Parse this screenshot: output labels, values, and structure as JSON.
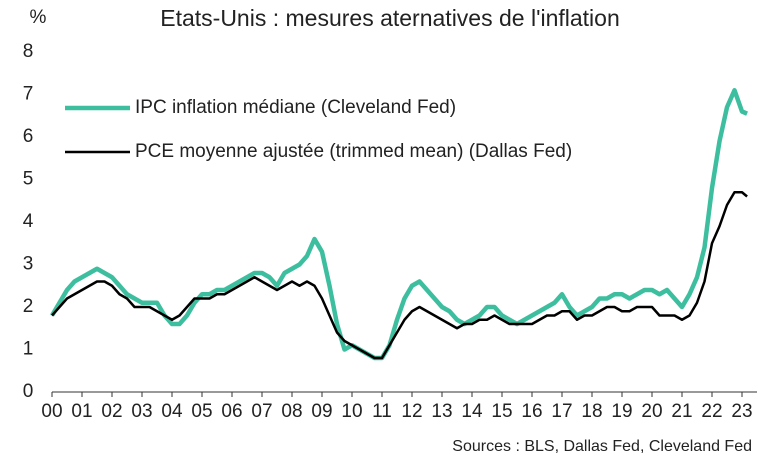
{
  "chart_data": {
    "type": "line",
    "title": "Etats-Unis : mesures aternatives de l'inflation",
    "ylabel": "%",
    "source": "Sources : BLS, Dallas Fed, Cleveland Fed",
    "legend": "top-left",
    "xlim": [
      0,
      23.5
    ],
    "ylim": [
      0,
      8
    ],
    "yticks": [
      0,
      1,
      2,
      3,
      4,
      5,
      6,
      7,
      8
    ],
    "xticks": [
      {
        "value": 0,
        "label": "00"
      },
      {
        "value": 1,
        "label": "01"
      },
      {
        "value": 2,
        "label": "02"
      },
      {
        "value": 3,
        "label": "03"
      },
      {
        "value": 4,
        "label": "04"
      },
      {
        "value": 5,
        "label": "05"
      },
      {
        "value": 6,
        "label": "06"
      },
      {
        "value": 7,
        "label": "07"
      },
      {
        "value": 8,
        "label": "08"
      },
      {
        "value": 9,
        "label": "09"
      },
      {
        "value": 10,
        "label": "10"
      },
      {
        "value": 11,
        "label": "11"
      },
      {
        "value": 12,
        "label": "12"
      },
      {
        "value": 13,
        "label": "13"
      },
      {
        "value": 14,
        "label": "14"
      },
      {
        "value": 15,
        "label": "15"
      },
      {
        "value": 16,
        "label": "16"
      },
      {
        "value": 17,
        "label": "17"
      },
      {
        "value": 18,
        "label": "18"
      },
      {
        "value": 19,
        "label": "19"
      },
      {
        "value": 20,
        "label": "20"
      },
      {
        "value": 21,
        "label": "21"
      },
      {
        "value": 22,
        "label": "22"
      },
      {
        "value": 23,
        "label": "23"
      }
    ],
    "x": [
      0,
      0.25,
      0.5,
      0.75,
      1,
      1.25,
      1.5,
      1.75,
      2,
      2.25,
      2.5,
      2.75,
      3,
      3.25,
      3.5,
      3.75,
      4,
      4.25,
      4.5,
      4.75,
      5,
      5.25,
      5.5,
      5.75,
      6,
      6.25,
      6.5,
      6.75,
      7,
      7.25,
      7.5,
      7.75,
      8,
      8.25,
      8.5,
      8.75,
      9,
      9.25,
      9.5,
      9.75,
      10,
      10.25,
      10.5,
      10.75,
      11,
      11.25,
      11.5,
      11.75,
      12,
      12.25,
      12.5,
      12.75,
      13,
      13.25,
      13.5,
      13.75,
      14,
      14.25,
      14.5,
      14.75,
      15,
      15.25,
      15.5,
      15.75,
      16,
      16.25,
      16.5,
      16.75,
      17,
      17.25,
      17.5,
      17.75,
      18,
      18.25,
      18.5,
      18.75,
      19,
      19.25,
      19.5,
      19.75,
      20,
      20.25,
      20.5,
      20.75,
      21,
      21.25,
      21.5,
      21.75,
      22,
      22.25,
      22.5,
      22.75,
      23,
      23.17
    ],
    "series": [
      {
        "name": "IPC inflation médiane (Cleveland Fed)",
        "color": "#3dbf9f",
        "width": 4.5,
        "values": [
          1.8,
          2.1,
          2.4,
          2.6,
          2.7,
          2.8,
          2.9,
          2.8,
          2.7,
          2.5,
          2.3,
          2.2,
          2.1,
          2.1,
          2.1,
          1.8,
          1.6,
          1.6,
          1.8,
          2.1,
          2.3,
          2.3,
          2.4,
          2.4,
          2.5,
          2.6,
          2.7,
          2.8,
          2.8,
          2.7,
          2.5,
          2.8,
          2.9,
          3.0,
          3.2,
          3.6,
          3.3,
          2.5,
          1.6,
          1.0,
          1.1,
          1.0,
          0.9,
          0.8,
          0.8,
          1.1,
          1.7,
          2.2,
          2.5,
          2.6,
          2.4,
          2.2,
          2.0,
          1.9,
          1.7,
          1.6,
          1.7,
          1.8,
          2.0,
          2.0,
          1.8,
          1.7,
          1.6,
          1.7,
          1.8,
          1.9,
          2.0,
          2.1,
          2.3,
          2.0,
          1.8,
          1.9,
          2.0,
          2.2,
          2.2,
          2.3,
          2.3,
          2.2,
          2.3,
          2.4,
          2.4,
          2.3,
          2.4,
          2.2,
          2.0,
          2.3,
          2.7,
          3.4,
          4.8,
          5.9,
          6.7,
          7.1,
          6.6,
          6.55
        ]
      },
      {
        "name": "PCE moyenne ajustée (trimmed mean) (Dallas Fed)",
        "color": "#000000",
        "width": 2.5,
        "values": [
          1.8,
          2.0,
          2.2,
          2.3,
          2.4,
          2.5,
          2.6,
          2.6,
          2.5,
          2.3,
          2.2,
          2.0,
          2.0,
          2.0,
          1.9,
          1.8,
          1.7,
          1.8,
          2.0,
          2.2,
          2.2,
          2.2,
          2.3,
          2.3,
          2.4,
          2.5,
          2.6,
          2.7,
          2.6,
          2.5,
          2.4,
          2.5,
          2.6,
          2.5,
          2.6,
          2.5,
          2.2,
          1.8,
          1.4,
          1.2,
          1.1,
          1.0,
          0.9,
          0.8,
          0.8,
          1.1,
          1.4,
          1.7,
          1.9,
          2.0,
          1.9,
          1.8,
          1.7,
          1.6,
          1.5,
          1.6,
          1.6,
          1.7,
          1.7,
          1.8,
          1.7,
          1.6,
          1.6,
          1.6,
          1.6,
          1.7,
          1.8,
          1.8,
          1.9,
          1.9,
          1.7,
          1.8,
          1.8,
          1.9,
          2.0,
          2.0,
          1.9,
          1.9,
          2.0,
          2.0,
          2.0,
          1.8,
          1.8,
          1.8,
          1.7,
          1.8,
          2.1,
          2.6,
          3.5,
          3.9,
          4.4,
          4.7,
          4.7,
          4.6
        ]
      }
    ]
  }
}
